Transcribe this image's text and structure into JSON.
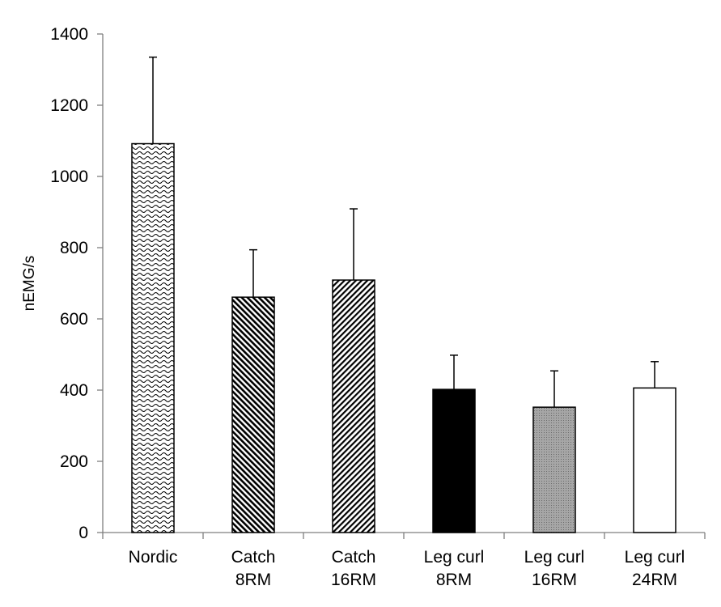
{
  "chart_data": {
    "type": "bar",
    "title": "",
    "xlabel": "",
    "ylabel": "nEMG/s",
    "ylim": [
      0,
      1400
    ],
    "yticks": [
      0,
      200,
      400,
      600,
      800,
      1000,
      1200,
      1400
    ],
    "grid": false,
    "legend": "none",
    "categories": [
      [
        "Nordic"
      ],
      [
        "Catch",
        "8RM"
      ],
      [
        "Catch",
        "16RM"
      ],
      [
        "Leg curl",
        "8RM"
      ],
      [
        "Leg curl",
        "16RM"
      ],
      [
        "Leg curl",
        "24RM"
      ]
    ],
    "values": [
      1092,
      661,
      709,
      402,
      352,
      406
    ],
    "error_upper": [
      243,
      133,
      200,
      96,
      102,
      74
    ],
    "fills": [
      "wavy-pattern",
      "dense-diagonal-hatch",
      "diagonal-hatch",
      "solid-black",
      "dotted-gray",
      "solid-white"
    ],
    "colors": {
      "black": "#000000",
      "gray": "#a6a6a6",
      "white": "#ffffff"
    }
  }
}
